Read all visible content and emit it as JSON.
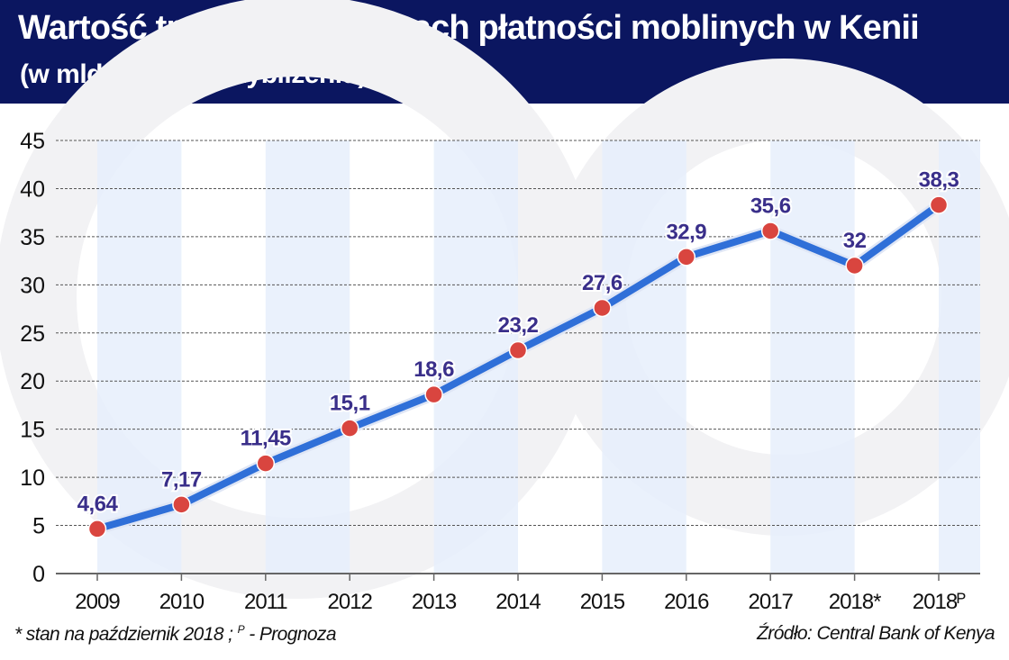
{
  "header": {
    "title": "Wartość transakcji w ramach płatności moblinych w Kenii",
    "subtitle": "(w mld USD, w przybliżeniu)"
  },
  "chart_data": {
    "type": "line",
    "title": "Wartość transakcji w ramach płatności moblinych w Kenii",
    "subtitle": "(w mld USD, w przybliżeniu)",
    "categories": [
      "2009",
      "2010",
      "2011",
      "2012",
      "2013",
      "2014",
      "2015",
      "2016",
      "2017",
      "2018*",
      "2018ᴾ"
    ],
    "values": [
      4.64,
      7.17,
      11.45,
      15.1,
      18.6,
      23.2,
      27.6,
      32.9,
      35.6,
      32,
      38.3
    ],
    "data_labels": [
      "4,64",
      "7,17",
      "11,45",
      "15,1",
      "18,6",
      "23,2",
      "27,6",
      "32,9",
      "35,6",
      "32",
      "38,3"
    ],
    "yticks": [
      "0",
      "5",
      "10",
      "15",
      "20",
      "25",
      "30",
      "35",
      "40",
      "45"
    ],
    "ylim": [
      0,
      45
    ],
    "grid": "horizontal dotted",
    "colors": {
      "line": "#2f6fd8",
      "marker": "#d9453f",
      "label": "#3a2f8a",
      "header": "#0b1660",
      "band": "#e6effb"
    }
  },
  "footer": {
    "note_prefix": "* stan na październik 2018 ; ",
    "note_sup": "P",
    "note_suffix": " - Prognoza",
    "source": "Źródło: Central Bank of Kenya"
  }
}
